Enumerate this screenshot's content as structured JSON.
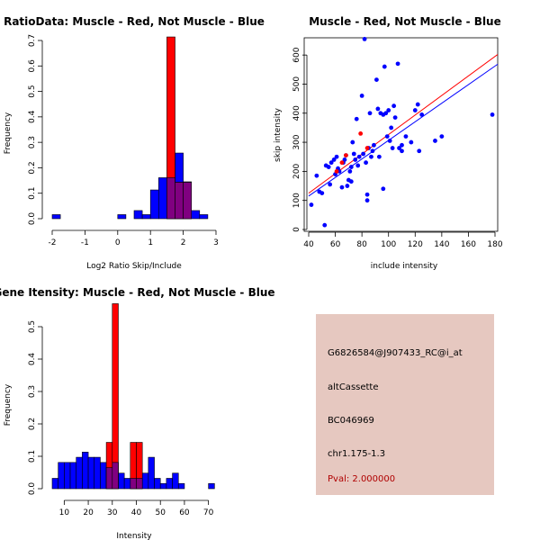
{
  "colors": {
    "muscle": "#ff0000",
    "not_muscle": "#0000ff",
    "overlap": "#800080",
    "panel_bg": "#e6c8c0",
    "pval": "#b00000"
  },
  "chart_data": [
    {
      "id": "ratio",
      "type": "bar",
      "title": "RatioData: Muscle - Red, Not Muscle - Blue",
      "xlabel": "Log2 Ratio Skip/Include",
      "ylabel": "Frequency",
      "xlim": [
        -2,
        3
      ],
      "ylim": [
        0,
        0.7
      ],
      "xticks": [
        "-2",
        "-1",
        "0",
        "1",
        "2",
        "3"
      ],
      "yticks": [
        "0.0",
        "0.1",
        "0.2",
        "0.3",
        "0.4",
        "0.5",
        "0.6",
        "0.7"
      ],
      "bin_width": 0.25,
      "series": [
        {
          "name": "Not Muscle",
          "color": "blue",
          "bins": [
            [
              -2.0,
              0.016
            ],
            [
              0.0,
              0.016
            ],
            [
              0.5,
              0.032
            ],
            [
              0.75,
              0.016
            ],
            [
              1.0,
              0.113
            ],
            [
              1.25,
              0.161
            ],
            [
              1.5,
              0.161
            ],
            [
              1.75,
              0.258
            ],
            [
              2.0,
              0.145
            ],
            [
              2.25,
              0.032
            ],
            [
              2.5,
              0.016
            ]
          ]
        },
        {
          "name": "Muscle",
          "color": "red",
          "bins": [
            [
              1.5,
              0.714
            ],
            [
              1.75,
              0.143
            ],
            [
              2.0,
              0.143
            ]
          ]
        }
      ]
    },
    {
      "id": "scatter",
      "type": "scatter",
      "title": "Muscle - Red, Not Muscle - Blue",
      "xlabel": "include intensity",
      "ylabel": "skip intensity",
      "xlim": [
        40,
        180
      ],
      "ylim": [
        0,
        650
      ],
      "xticks": [
        "40",
        "60",
        "80",
        "100",
        "120",
        "140",
        "160",
        "180"
      ],
      "yticks": [
        "0",
        "100",
        "200",
        "300",
        "400",
        "500",
        "600"
      ],
      "lines": [
        {
          "name": "Muscle fit",
          "color": "red",
          "x": [
            40,
            185
          ],
          "y": [
            125,
            612
          ]
        },
        {
          "name": "Not Muscle fit",
          "color": "blue",
          "x": [
            40,
            185
          ],
          "y": [
            115,
            578
          ]
        }
      ],
      "series": [
        {
          "name": "Not Muscle",
          "color": "blue",
          "points": [
            [
              42,
              85
            ],
            [
              46,
              185
            ],
            [
              48,
              130
            ],
            [
              50,
              125
            ],
            [
              52,
              15
            ],
            [
              53,
              220
            ],
            [
              55,
              215
            ],
            [
              56,
              155
            ],
            [
              57,
              230
            ],
            [
              59,
              240
            ],
            [
              60,
              190
            ],
            [
              61,
              250
            ],
            [
              62,
              210
            ],
            [
              63,
              200
            ],
            [
              65,
              145
            ],
            [
              66,
              230
            ],
            [
              67,
              240
            ],
            [
              68,
              255
            ],
            [
              69,
              150
            ],
            [
              70,
              170
            ],
            [
              71,
              200
            ],
            [
              72,
              215
            ],
            [
              72,
              165
            ],
            [
              73,
              300
            ],
            [
              74,
              260
            ],
            [
              75,
              240
            ],
            [
              76,
              380
            ],
            [
              77,
              220
            ],
            [
              78,
              250
            ],
            [
              80,
              460
            ],
            [
              81,
              260
            ],
            [
              82,
              655
            ],
            [
              83,
              230
            ],
            [
              84,
              120
            ],
            [
              84,
              100
            ],
            [
              85,
              280
            ],
            [
              86,
              400
            ],
            [
              87,
              250
            ],
            [
              88,
              270
            ],
            [
              89,
              290
            ],
            [
              91,
              515
            ],
            [
              92,
              415
            ],
            [
              93,
              250
            ],
            [
              94,
              400
            ],
            [
              96,
              395
            ],
            [
              96,
              140
            ],
            [
              97,
              560
            ],
            [
              98,
              400
            ],
            [
              99,
              320
            ],
            [
              100,
              410
            ],
            [
              101,
              305
            ],
            [
              102,
              350
            ],
            [
              103,
              280
            ],
            [
              104,
              425
            ],
            [
              105,
              385
            ],
            [
              107,
              570
            ],
            [
              108,
              280
            ],
            [
              110,
              290
            ],
            [
              110,
              270
            ],
            [
              113,
              320
            ],
            [
              117,
              300
            ],
            [
              120,
              410
            ],
            [
              122,
              430
            ],
            [
              123,
              270
            ],
            [
              125,
              395
            ],
            [
              135,
              305
            ],
            [
              140,
              320
            ],
            [
              178,
              395
            ]
          ]
        },
        {
          "name": "Muscle",
          "color": "red",
          "points": [
            [
              61,
              200
            ],
            [
              65,
              230
            ],
            [
              68,
              255
            ],
            [
              79,
              330
            ],
            [
              84,
              280
            ]
          ]
        }
      ]
    },
    {
      "id": "intensity",
      "type": "bar",
      "title": "Gene Itensity: Muscle - Red, Not Muscle - Blue",
      "xlabel": "Intensity",
      "ylabel": "Frequency",
      "xlim": [
        5,
        75
      ],
      "ylim": [
        0,
        0.55
      ],
      "xticks": [
        "10",
        "20",
        "30",
        "40",
        "50",
        "60",
        "70"
      ],
      "yticks": [
        "0.0",
        "0.1",
        "0.2",
        "0.3",
        "0.4",
        "0.5"
      ],
      "bin_width": 2.5,
      "series": [
        {
          "name": "Not Muscle",
          "color": "blue",
          "bins": [
            [
              5.0,
              0.032
            ],
            [
              7.5,
              0.081
            ],
            [
              10.0,
              0.081
            ],
            [
              12.5,
              0.081
            ],
            [
              15.0,
              0.097
            ],
            [
              17.5,
              0.113
            ],
            [
              20.0,
              0.097
            ],
            [
              22.5,
              0.097
            ],
            [
              25.0,
              0.081
            ],
            [
              27.5,
              0.065
            ],
            [
              30.0,
              0.081
            ],
            [
              32.5,
              0.048
            ],
            [
              35.0,
              0.032
            ],
            [
              37.5,
              0.032
            ],
            [
              40.0,
              0.032
            ],
            [
              42.5,
              0.048
            ],
            [
              45.0,
              0.097
            ],
            [
              47.5,
              0.032
            ],
            [
              50.0,
              0.016
            ],
            [
              52.5,
              0.032
            ],
            [
              55.0,
              0.048
            ],
            [
              57.5,
              0.016
            ],
            [
              70.0,
              0.016
            ]
          ]
        },
        {
          "name": "Muscle",
          "color": "red",
          "bins": [
            [
              27.5,
              0.143
            ],
            [
              30.0,
              0.571
            ],
            [
              37.5,
              0.143
            ],
            [
              40.0,
              0.143
            ]
          ]
        }
      ]
    }
  ],
  "info_panel": {
    "probe_id": "G6826584@J907433_RC@i_at",
    "event_type": "altCassette",
    "accession": "BC046969",
    "location": "chr1.175-1.3",
    "pval": "Pval: 2.000000"
  }
}
